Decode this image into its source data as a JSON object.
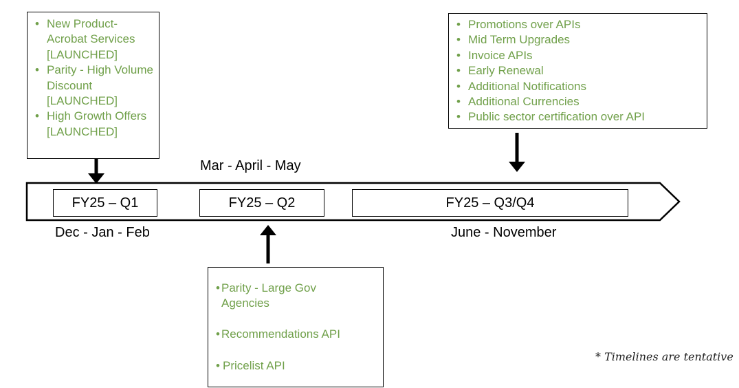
{
  "q1_box": {
    "items": [
      "New Product- Acrobat Services [LAUNCHED]",
      "Parity - High Volume Discount [LAUNCHED]",
      "High Growth Offers [LAUNCHED]"
    ]
  },
  "q34_box": {
    "items": [
      "Promotions over APIs",
      "Mid Term Upgrades",
      "Invoice APIs",
      "Early Renewal",
      "Additional Notifications",
      "Additional Currencies",
      "Public sector certification over API"
    ]
  },
  "q2_box": {
    "items": [
      "Parity - Large Gov Agencies",
      "Recommendations API",
      "Pricelist API"
    ]
  },
  "timeline": {
    "q1_label": "FY25 – Q1",
    "q2_label": "FY25 – Q2",
    "q34_label": "FY25 – Q3/Q4",
    "q1_months": "Dec - Jan - Feb",
    "q2_months": "Mar - April - May",
    "q34_months": "June - November"
  },
  "footnote": "* Timelines are tentative",
  "colors": {
    "bullet_text": "#70a04a",
    "outline": "#000000"
  }
}
